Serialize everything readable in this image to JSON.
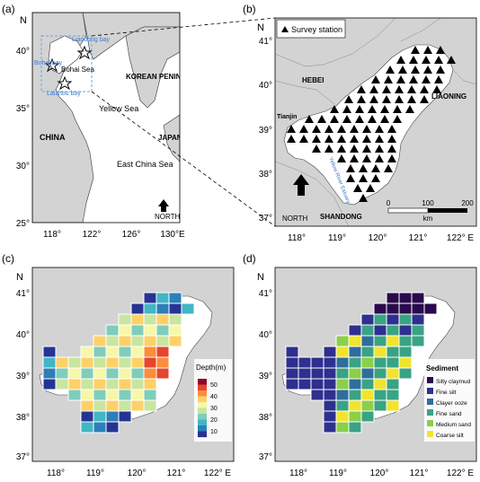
{
  "panels": {
    "a": {
      "label": "(a)",
      "axis": {
        "north": "N",
        "y_ticks": [
          "40°",
          "35°",
          "30°",
          "25°"
        ],
        "x_ticks": [
          "118°",
          "122°",
          "126°",
          "130°E"
        ]
      },
      "places": {
        "liaodong": "Liaodong bay",
        "bohai_bay": "Bohai bay",
        "bohai_sea": "Bohai Sea",
        "laizhou": "Laizhou bay",
        "yellow_sea": "Yellow Sea",
        "korean": "KOREAN PENINSULA",
        "japan": "JAPAN",
        "china": "CHINA",
        "east_china_sea": "East China Sea",
        "north": "NORTH"
      }
    },
    "b": {
      "label": "(b)",
      "axis": {
        "north": "N",
        "y_ticks": [
          "41°",
          "40°",
          "39°",
          "38°",
          "37°"
        ],
        "x_ticks": [
          "118°",
          "119°",
          "120°",
          "121°",
          "122° E"
        ]
      },
      "legend": "Survey station",
      "places": {
        "hebei": "HEBEI",
        "tianjin": "Tianjin",
        "liaoning": "LIAONING",
        "shandong": "SHANDONG",
        "yellow_river": "Yellow River Estuary",
        "north": "NORTH"
      },
      "scale": {
        "ticks": [
          "0",
          "100",
          "200"
        ],
        "unit": "km"
      }
    },
    "c": {
      "label": "(c)",
      "axis": {
        "north": "N",
        "y_ticks": [
          "41°",
          "40°",
          "39°",
          "38°",
          "37°"
        ],
        "x_ticks": [
          "118°",
          "119°",
          "120°",
          "121°",
          "122° E"
        ]
      },
      "colorbar": {
        "title": "Depth(m)",
        "ticks": [
          "50",
          "40",
          "30",
          "20",
          "10"
        ],
        "colors": [
          "#8b0a2a",
          "#e5462d",
          "#fc8d3c",
          "#fdd168",
          "#f7f7a9",
          "#c8e6a0",
          "#7fcdbb",
          "#41b6c4",
          "#2c7fb8",
          "#253494"
        ]
      }
    },
    "d": {
      "label": "(d)",
      "axis": {
        "north": "N",
        "y_ticks": [
          "41°",
          "40°",
          "39°",
          "38°",
          "37°"
        ],
        "x_ticks": [
          "118°",
          "119°",
          "120°",
          "121°",
          "122° E"
        ]
      },
      "legend": {
        "title": "Sediment",
        "items": [
          {
            "label": "Silty claymud",
            "color": "#2a0a4c"
          },
          {
            "label": "Fine silt",
            "color": "#2e2f8e"
          },
          {
            "label": "Clayer ooze",
            "color": "#2f6d9c"
          },
          {
            "label": "Fine sand",
            "color": "#39a384"
          },
          {
            "label": "Medium sand",
            "color": "#8bcf4a"
          },
          {
            "label": "Coarse silt",
            "color": "#f2e42d"
          }
        ]
      }
    }
  },
  "map_data": {
    "depth_values": [
      "10",
      "20",
      "30",
      "40",
      "50"
    ],
    "sediment_classes": [
      "Silty claymud",
      "Fine silt",
      "Clayer ooze",
      "Fine sand",
      "Medium sand",
      "Coarse silt"
    ]
  }
}
